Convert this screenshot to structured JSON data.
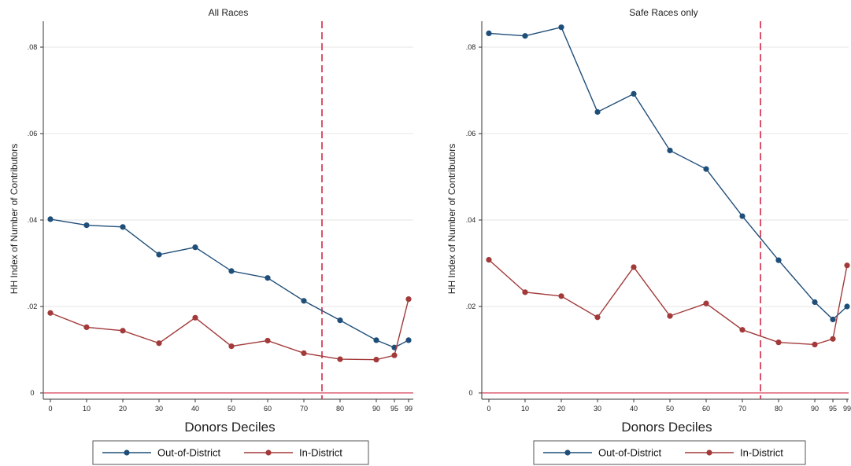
{
  "chart_data": [
    {
      "type": "line",
      "title": "All Races",
      "xlabel": "Donors Deciles",
      "ylabel": "HH Index of Number of Contributors",
      "x": [
        0,
        10,
        20,
        30,
        40,
        50,
        60,
        70,
        80,
        90,
        95,
        99
      ],
      "x_tick_labels": [
        "0",
        "10",
        "20",
        "30",
        "40",
        "50",
        "60",
        "70",
        "80",
        "90",
        "95",
        "99"
      ],
      "y_tick_labels": [
        "0",
        ".02",
        ".04",
        ".06",
        ".08"
      ],
      "y_ticks": [
        0,
        0.02,
        0.04,
        0.06,
        0.08
      ],
      "xlim": [
        0,
        99
      ],
      "ylim": [
        0,
        0.086
      ],
      "grid": true,
      "vline_x": 75,
      "hline_y": 0,
      "series": [
        {
          "name": "Out-of-District",
          "color": "#1f4e79",
          "values": [
            0.0402,
            0.0388,
            0.0384,
            0.032,
            0.0337,
            0.0282,
            0.0266,
            0.0213,
            0.0168,
            0.0122,
            0.0105,
            0.0122
          ]
        },
        {
          "name": "In-District",
          "color": "#a23a3a",
          "values": [
            0.0185,
            0.0152,
            0.0144,
            0.0115,
            0.0174,
            0.0108,
            0.0121,
            0.0092,
            0.0078,
            0.0077,
            0.0087,
            0.0217
          ]
        }
      ],
      "legend_position": "bottom"
    },
    {
      "type": "line",
      "title": "Safe Races only",
      "xlabel": "Donors Deciles",
      "ylabel": "HH Index of Number of Contributors",
      "x": [
        0,
        10,
        20,
        30,
        40,
        50,
        60,
        70,
        80,
        90,
        95,
        99
      ],
      "x_tick_labels": [
        "0",
        "10",
        "20",
        "30",
        "40",
        "50",
        "60",
        "70",
        "80",
        "90",
        "95",
        "99"
      ],
      "y_tick_labels": [
        "0",
        ".02",
        ".04",
        ".06",
        ".08"
      ],
      "y_ticks": [
        0,
        0.02,
        0.04,
        0.06,
        0.08
      ],
      "xlim": [
        0,
        99
      ],
      "ylim": [
        0,
        0.086
      ],
      "grid": true,
      "vline_x": 75,
      "hline_y": 0,
      "series": [
        {
          "name": "Out-of-District",
          "color": "#1f4e79",
          "values": [
            0.0832,
            0.0826,
            0.0846,
            0.065,
            0.0692,
            0.0561,
            0.0518,
            0.0409,
            0.0307,
            0.021,
            0.017,
            0.02
          ]
        },
        {
          "name": "In-District",
          "color": "#a23a3a",
          "values": [
            0.0308,
            0.0233,
            0.0224,
            0.0175,
            0.0291,
            0.0178,
            0.0207,
            0.0146,
            0.0117,
            0.0112,
            0.0125,
            0.0295
          ]
        }
      ],
      "legend_position": "bottom"
    }
  ]
}
